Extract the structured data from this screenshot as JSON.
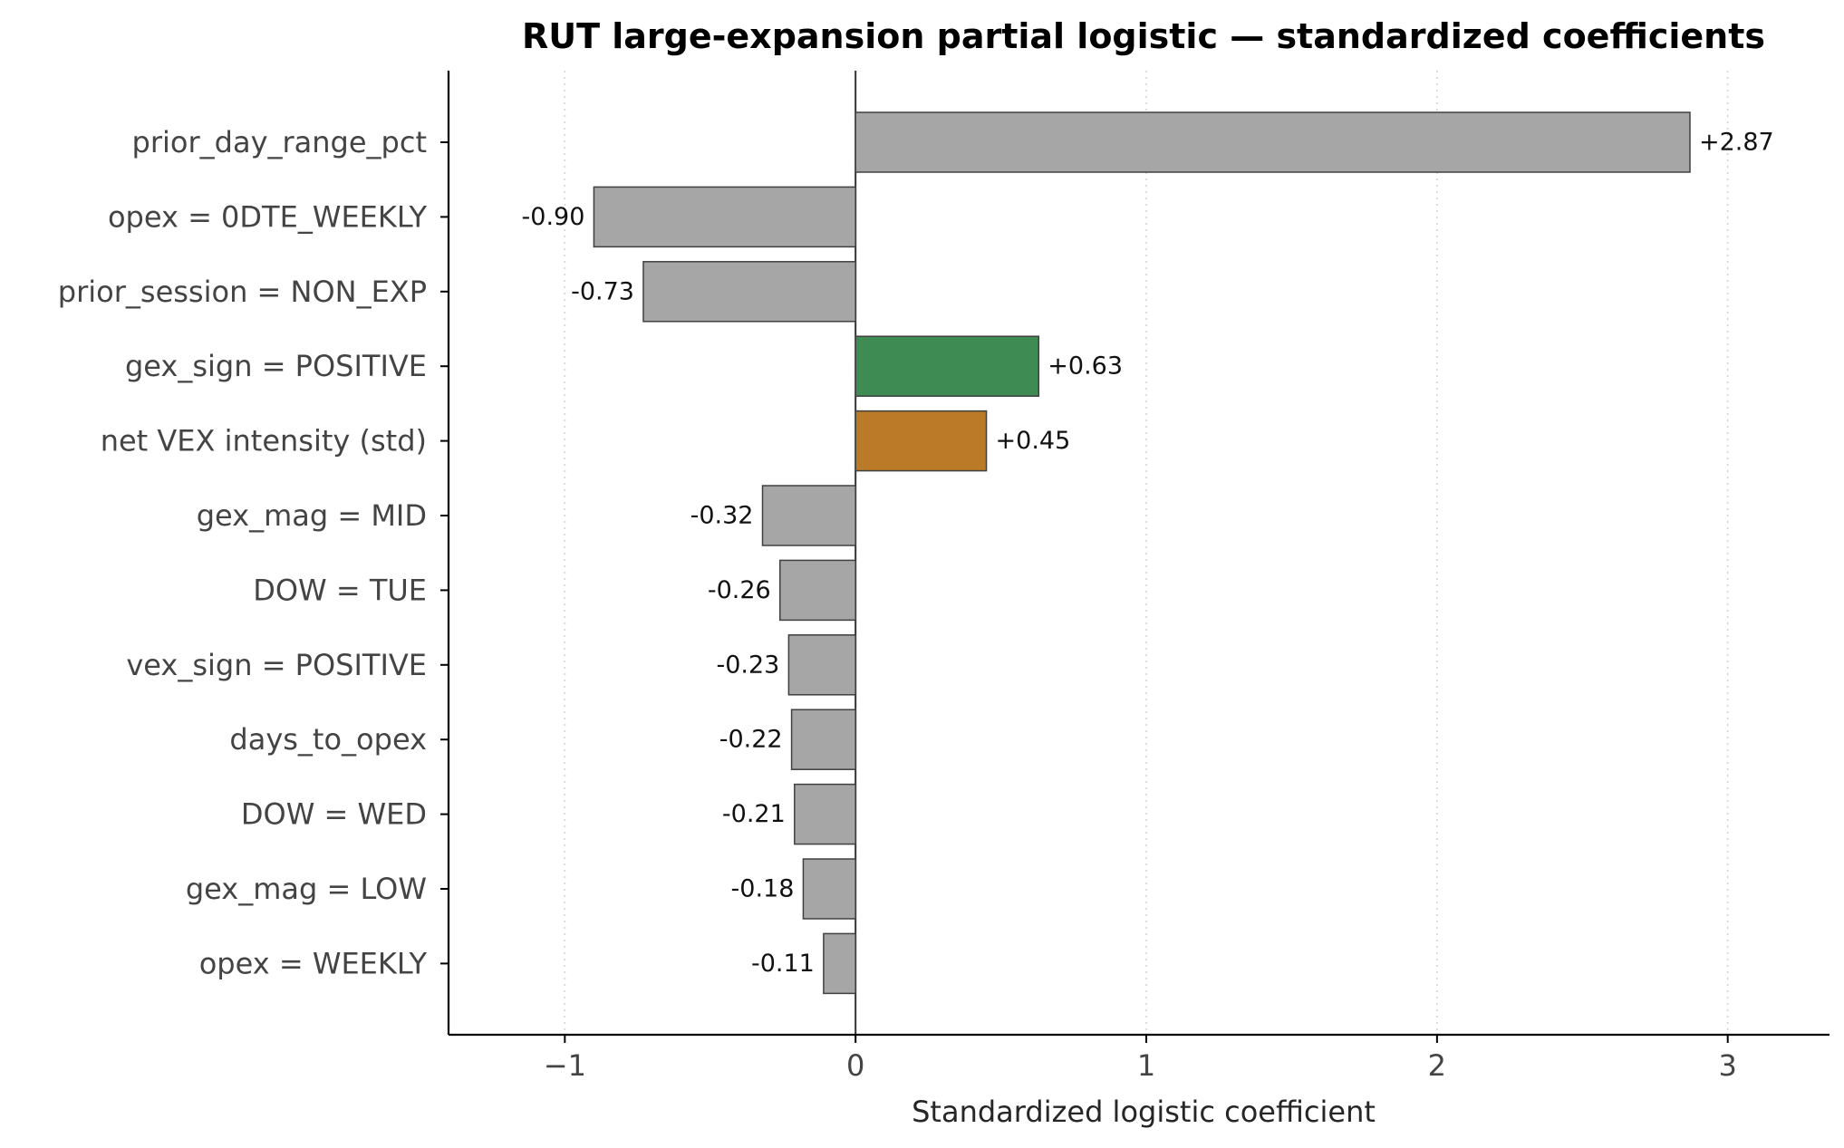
{
  "chart_data": {
    "type": "bar",
    "orientation": "horizontal",
    "title": "RUT large-expansion partial logistic — standardized coefficients",
    "xlabel": "Standardized logistic coefficient",
    "ylabel": "",
    "xlim": [
      -1.4,
      3.35
    ],
    "xticks": [
      -1,
      0,
      1,
      2,
      3
    ],
    "xtick_labels": [
      "−1",
      "0",
      "1",
      "2",
      "3"
    ],
    "grid": "vertical dotted",
    "legend": "none",
    "categories": [
      "prior_day_range_pct",
      "opex = 0DTE_WEEKLY",
      "prior_session = NON_EXP",
      "gex_sign = POSITIVE",
      "net VEX intensity (std)",
      "gex_mag = MID",
      "DOW = TUE",
      "vex_sign = POSITIVE",
      "days_to_opex",
      "DOW = WED",
      "gex_mag = LOW",
      "opex = WEEKLY"
    ],
    "values": [
      2.87,
      -0.9,
      -0.73,
      0.63,
      0.45,
      -0.32,
      -0.26,
      -0.23,
      -0.22,
      -0.21,
      -0.18,
      -0.11
    ],
    "value_labels": [
      "+2.87",
      "-0.90",
      "-0.73",
      "+0.63",
      "+0.45",
      "-0.32",
      "-0.26",
      "-0.23",
      "-0.22",
      "-0.21",
      "-0.18",
      "-0.11"
    ],
    "colors": [
      "#a6a6a6",
      "#a6a6a6",
      "#a6a6a6",
      "#3e8c54",
      "#ba7a27",
      "#a6a6a6",
      "#a6a6a6",
      "#a6a6a6",
      "#a6a6a6",
      "#a6a6a6",
      "#a6a6a6",
      "#a6a6a6"
    ],
    "edge_color": "#404040"
  }
}
